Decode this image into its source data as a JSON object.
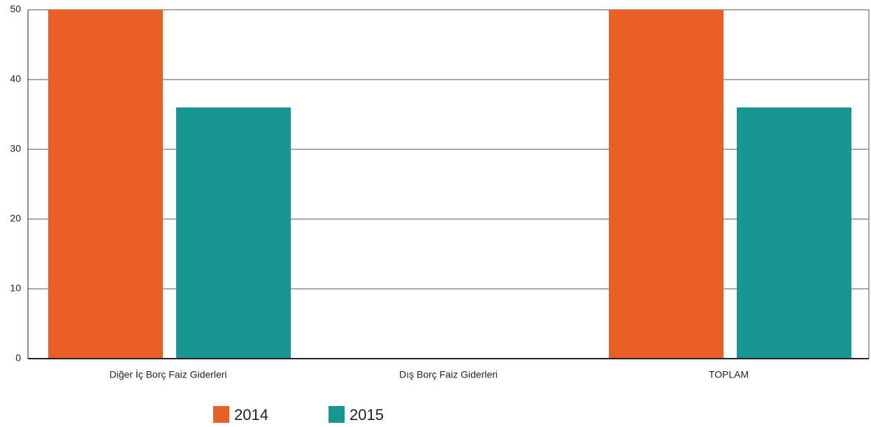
{
  "chart_data": {
    "type": "bar",
    "categories": [
      "Diğer İç Borç Faiz Giderleri",
      "Dış Borç Faiz Giderleri",
      "TOPLAM"
    ],
    "series": [
      {
        "name": "2014",
        "color": "#e86024",
        "values": [
          50,
          0,
          50
        ]
      },
      {
        "name": "2015",
        "color": "#179592",
        "values": [
          36,
          0,
          36
        ]
      }
    ],
    "ylim": [
      0,
      50
    ],
    "yticks": [
      0,
      10,
      20,
      30,
      40,
      50
    ],
    "grid": true,
    "legend": "bottom"
  }
}
